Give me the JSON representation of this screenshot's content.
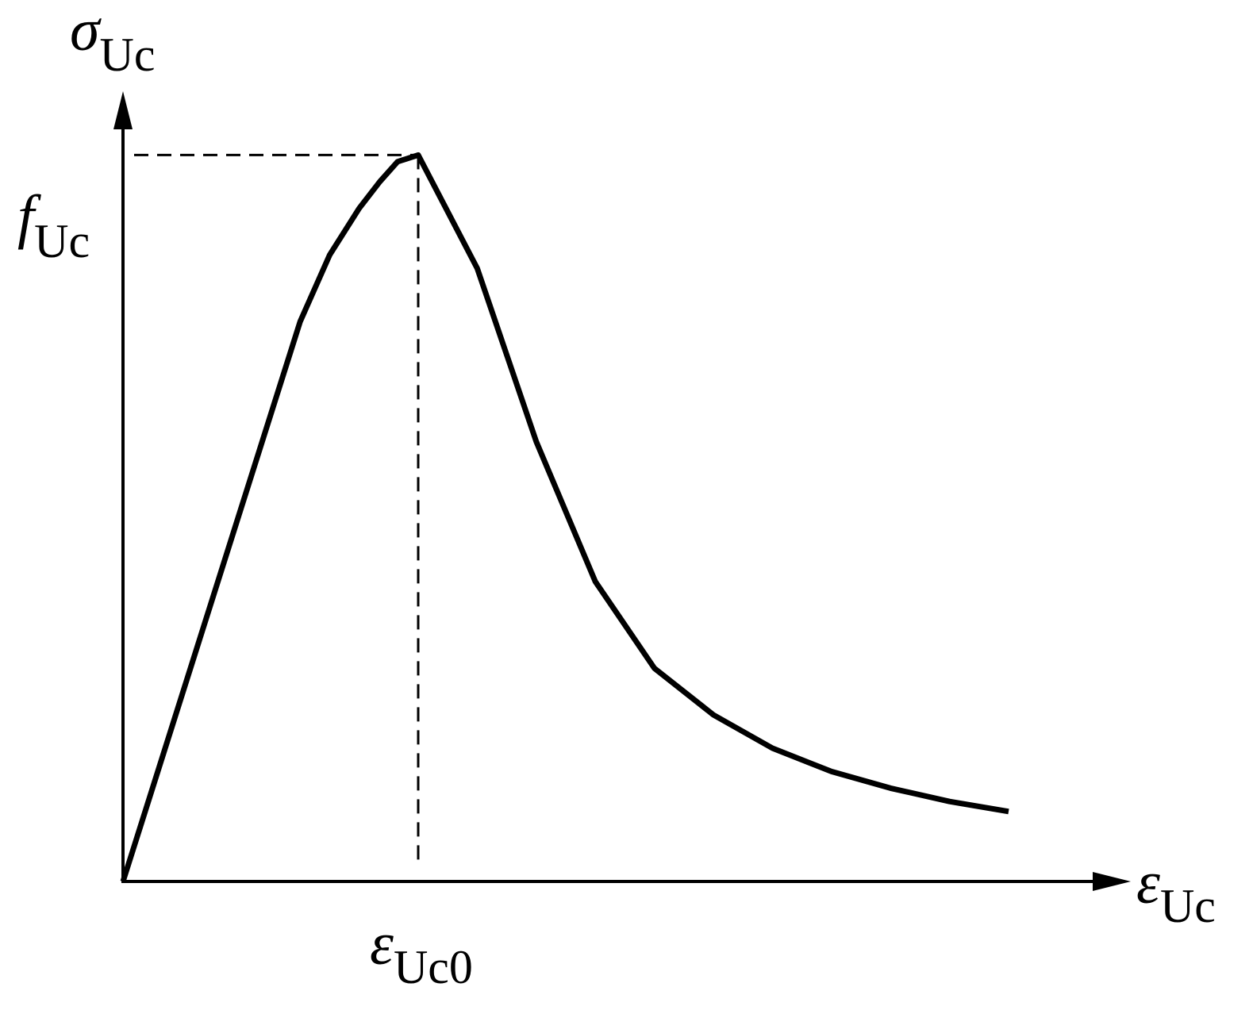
{
  "chart_data": {
    "type": "line",
    "title": "",
    "xlabel": {
      "symbol": "ε",
      "subscript": "Uc"
    },
    "ylabel": {
      "symbol": "σ",
      "subscript": "Uc"
    },
    "peak_x_label": {
      "symbol": "ε",
      "subscript": "Uc0"
    },
    "peak_y_label": {
      "symbol": "f",
      "subscript": "Uc"
    },
    "xlim": [
      0,
      3.4
    ],
    "ylim": [
      0,
      1.25
    ],
    "grid": false,
    "series": [
      {
        "x": [
          0,
          0.2,
          0.4,
          0.6,
          0.7,
          0.8,
          0.87,
          0.93,
          1.0,
          1.2,
          1.4,
          1.6,
          1.8,
          2.0,
          2.2,
          2.4,
          2.6,
          2.8,
          3.0
        ],
        "y": [
          0,
          0.28,
          0.56,
          0.84,
          0.94,
          1.01,
          1.05,
          1.08,
          1.09,
          0.92,
          0.66,
          0.45,
          0.32,
          0.25,
          0.2,
          0.165,
          0.14,
          0.12,
          0.105
        ]
      }
    ],
    "annotations": [
      {
        "type": "dashed-guide",
        "x": 1.0,
        "y": 1.09
      }
    ]
  }
}
